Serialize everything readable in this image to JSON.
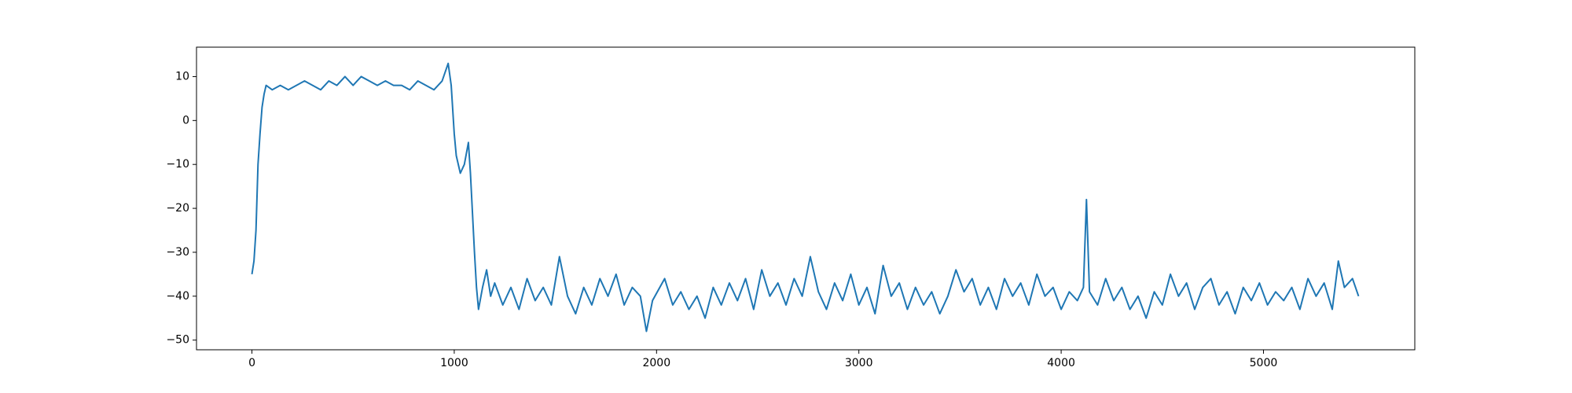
{
  "chart_data": {
    "type": "line",
    "color": "#1f77b4",
    "x": [
      0,
      10,
      20,
      30,
      40,
      50,
      60,
      70,
      100,
      140,
      180,
      220,
      260,
      300,
      340,
      380,
      420,
      460,
      500,
      540,
      580,
      620,
      660,
      700,
      740,
      780,
      820,
      860,
      900,
      940,
      970,
      985,
      1000,
      1010,
      1030,
      1050,
      1070,
      1080,
      1100,
      1110,
      1120,
      1140,
      1160,
      1180,
      1200,
      1240,
      1280,
      1320,
      1360,
      1400,
      1440,
      1480,
      1520,
      1560,
      1600,
      1640,
      1680,
      1720,
      1760,
      1800,
      1840,
      1880,
      1920,
      1950,
      1980,
      2040,
      2080,
      2120,
      2160,
      2200,
      2240,
      2280,
      2320,
      2360,
      2400,
      2440,
      2480,
      2520,
      2560,
      2600,
      2640,
      2680,
      2720,
      2760,
      2800,
      2840,
      2880,
      2920,
      2960,
      3000,
      3040,
      3080,
      3120,
      3160,
      3200,
      3240,
      3280,
      3320,
      3360,
      3400,
      3440,
      3480,
      3520,
      3560,
      3600,
      3640,
      3680,
      3720,
      3760,
      3800,
      3840,
      3880,
      3920,
      3960,
      4000,
      4040,
      4080,
      4110,
      4125,
      4140,
      4180,
      4220,
      4260,
      4300,
      4340,
      4380,
      4420,
      4460,
      4500,
      4540,
      4580,
      4620,
      4660,
      4700,
      4740,
      4780,
      4820,
      4860,
      4900,
      4940,
      4980,
      5020,
      5060,
      5100,
      5140,
      5180,
      5220,
      5260,
      5300,
      5340,
      5370,
      5400,
      5440,
      5470
    ],
    "values": [
      -35,
      -32,
      -25,
      -10,
      -3,
      3,
      6,
      8,
      7,
      8,
      7,
      8,
      9,
      8,
      7,
      9,
      8,
      10,
      8,
      10,
      9,
      8,
      9,
      8,
      8,
      7,
      9,
      8,
      7,
      9,
      13,
      8,
      -3,
      -8,
      -12,
      -10,
      -5,
      -12,
      -30,
      -38,
      -43,
      -38,
      -34,
      -40,
      -37,
      -42,
      -38,
      -43,
      -36,
      -41,
      -38,
      -42,
      -31,
      -40,
      -44,
      -38,
      -42,
      -36,
      -40,
      -35,
      -42,
      -38,
      -40,
      -48,
      -41,
      -36,
      -42,
      -39,
      -43,
      -40,
      -45,
      -38,
      -42,
      -37,
      -41,
      -36,
      -43,
      -34,
      -40,
      -37,
      -42,
      -36,
      -40,
      -31,
      -39,
      -43,
      -37,
      -41,
      -35,
      -42,
      -38,
      -44,
      -33,
      -40,
      -37,
      -43,
      -38,
      -42,
      -39,
      -44,
      -40,
      -34,
      -39,
      -36,
      -42,
      -38,
      -43,
      -36,
      -40,
      -37,
      -42,
      -35,
      -40,
      -38,
      -43,
      -39,
      -41,
      -38,
      -18,
      -39,
      -42,
      -36,
      -41,
      -38,
      -43,
      -40,
      -45,
      -39,
      -42,
      -35,
      -40,
      -37,
      -43,
      -38,
      -36,
      -42,
      -39,
      -44,
      -38,
      -41,
      -37,
      -42,
      -39,
      -41,
      -38,
      -43,
      -36,
      -40,
      -37,
      -43,
      -32,
      -38,
      -36,
      -40
    ],
    "xlim": [
      -274,
      5748
    ],
    "ylim": [
      -52.2,
      16.7
    ],
    "xticks": [
      0,
      1000,
      2000,
      3000,
      4000,
      5000
    ],
    "yticks": [
      {
        "value": -50,
        "label": "−50"
      },
      {
        "value": -40,
        "label": "−40"
      },
      {
        "value": -30,
        "label": "−30"
      },
      {
        "value": -20,
        "label": "−20"
      },
      {
        "value": -10,
        "label": "−10"
      },
      0,
      10
    ]
  }
}
